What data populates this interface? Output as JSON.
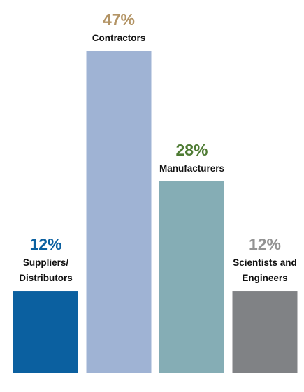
{
  "chart_data": {
    "type": "bar",
    "categories": [
      [
        "Suppliers/",
        "Distributors"
      ],
      [
        "Contractors"
      ],
      [
        "Manufacturers"
      ],
      [
        "Scientists and",
        "Engineers"
      ]
    ],
    "values": [
      12,
      47,
      28,
      12
    ],
    "value_labels": [
      "12%",
      "47%",
      "28%",
      "12%"
    ],
    "colors": [
      "#0b60a0",
      "#9fb3d4",
      "#85adb5",
      "#808285"
    ],
    "label_colors": [
      "#0b60a0",
      "#b39465",
      "#4e7b33",
      "#939393"
    ],
    "ylim": [
      0,
      47
    ],
    "grid": false
  }
}
